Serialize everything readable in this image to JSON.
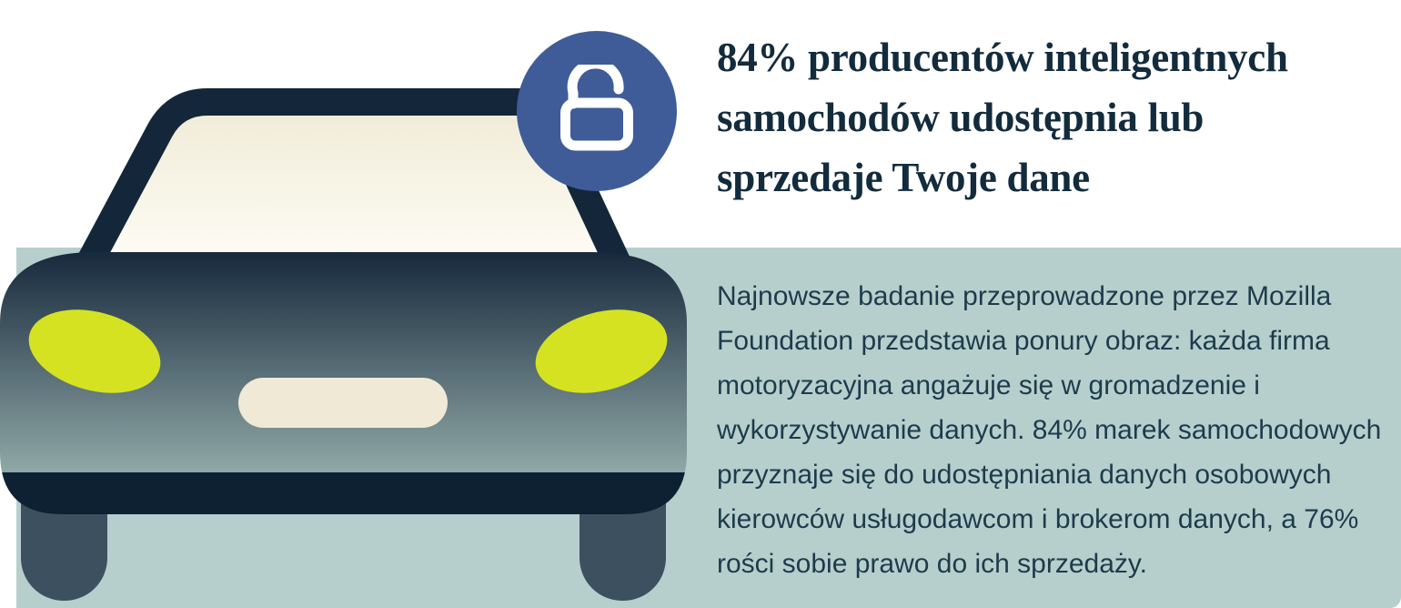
{
  "card": {
    "headline": {
      "lines": [
        "84% producentów inteligentnych",
        "samochodów udostępnia lub",
        "sprzedaje Twoje dane"
      ]
    },
    "paragraph": {
      "lines": [
        "Najnowsze badanie przeprowadzone przez Mozilla",
        "Foundation przedstawia ponury obraz: każda firma",
        "motoryzacyjna angażuje się w gromadzenie i",
        "wykorzystywanie danych. 84% marek samochodowych",
        "przyznaje się do udostępniania danych osobowych",
        "kierowców usługodawcom i brokerom danych, a 76%",
        "rości sobie prawo do ich sprzedaży."
      ]
    },
    "illustration": {
      "subject": "car front with open padlock badge",
      "icon": "unlock-icon"
    }
  },
  "colors": {
    "page_bg": "#ffffff",
    "panel_teal": "#b6cfcd",
    "headline_text": "#132c3d",
    "body_text": "#1e3b4c",
    "badge_blue": "#3f5c98",
    "badge_glyph": "#ffffff",
    "car_dark": "#14273a",
    "car_bumper": "#0d2133",
    "car_body_fade": "#90a8a7",
    "wheel_slate": "#3c5060",
    "headlight_yellow": "#d5e222",
    "plate_cream": "#efe9d6",
    "glass_cream": "#f1ebd6"
  }
}
